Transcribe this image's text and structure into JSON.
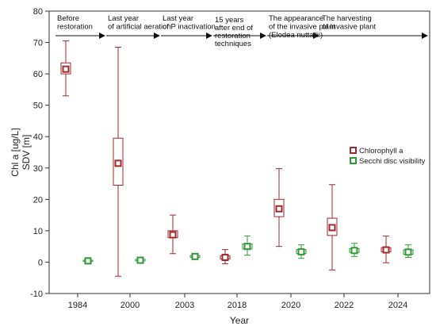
{
  "chart_data": {
    "type": "box",
    "x_title": "Year",
    "y_title_lines": [
      "Chl a [ug/L]",
      "SDV [m]"
    ],
    "categories": [
      "1984",
      "2000",
      "2003",
      "2018",
      "2020",
      "2022",
      "2024"
    ],
    "y_ticks": [
      -10,
      0,
      10,
      20,
      30,
      40,
      50,
      60,
      70,
      80
    ],
    "ylim": [
      -10,
      80
    ],
    "grid": false,
    "legend_placement": "right",
    "colors": {
      "chlorophyll": "#a3282b",
      "secchi": "#2f9a33",
      "arrow": "#111111",
      "axis": "#333333"
    },
    "series": [
      {
        "name": "Chlorophyll a",
        "key": "chlorophyll",
        "boxes": [
          {
            "category": "1984",
            "mean": 61.5,
            "box_low": 60.0,
            "box_high": 63.5,
            "whisker_low": 53.0,
            "whisker_high": 70.5
          },
          {
            "category": "2000",
            "mean": 31.5,
            "box_low": 24.5,
            "box_high": 39.5,
            "whisker_low": -4.5,
            "whisker_high": 68.5
          },
          {
            "category": "2003",
            "mean": 8.7,
            "box_low": 7.8,
            "box_high": 10.0,
            "whisker_low": 2.7,
            "whisker_high": 15.0
          },
          {
            "category": "2018",
            "mean": 1.5,
            "box_low": 1.0,
            "box_high": 2.0,
            "whisker_low": -0.5,
            "whisker_high": 4.0
          },
          {
            "category": "2020",
            "mean": 17.0,
            "box_low": 14.5,
            "box_high": 20.0,
            "whisker_low": 5.0,
            "whisker_high": 29.8
          },
          {
            "category": "2022",
            "mean": 11.0,
            "box_low": 8.5,
            "box_high": 14.0,
            "whisker_low": -2.5,
            "whisker_high": 24.7
          },
          {
            "category": "2024",
            "mean": 3.9,
            "box_low": 3.3,
            "box_high": 4.6,
            "whisker_low": -0.2,
            "whisker_high": 8.3
          }
        ]
      },
      {
        "name": "Secchi disc visibility",
        "key": "secchi",
        "boxes": [
          {
            "category": "1984",
            "mean": 0.4,
            "box_low": 0.2,
            "box_high": 0.6,
            "whisker_low": 0.1,
            "whisker_high": 0.8
          },
          {
            "category": "2000",
            "mean": 0.6,
            "box_low": 0.4,
            "box_high": 0.9,
            "whisker_low": 0.2,
            "whisker_high": 1.2
          },
          {
            "category": "2003",
            "mean": 1.8,
            "box_low": 1.5,
            "box_high": 2.1,
            "whisker_low": 1.2,
            "whisker_high": 2.4
          },
          {
            "category": "2018",
            "mean": 5.0,
            "box_low": 4.2,
            "box_high": 5.8,
            "whisker_low": 2.2,
            "whisker_high": 8.3
          },
          {
            "category": "2020",
            "mean": 3.3,
            "box_low": 2.7,
            "box_high": 4.0,
            "whisker_low": 1.2,
            "whisker_high": 5.5
          },
          {
            "category": "2022",
            "mean": 3.7,
            "box_low": 3.1,
            "box_high": 4.3,
            "whisker_low": 1.8,
            "whisker_high": 6.0
          },
          {
            "category": "2024",
            "mean": 3.2,
            "box_low": 2.5,
            "box_high": 3.9,
            "whisker_low": 1.5,
            "whisker_high": 5.5
          }
        ]
      }
    ],
    "annotations": [
      {
        "lines": [
          "Before",
          "restoration"
        ],
        "start": "1984",
        "end": "2000"
      },
      {
        "lines": [
          "Last year",
          "of artificial aeration"
        ],
        "start": "2000",
        "end": "2003"
      },
      {
        "lines": [
          "Last year",
          "of P inactivation"
        ],
        "start": "2003",
        "end": "2018"
      },
      {
        "lines": [
          "15 years",
          "after end of",
          "restoration",
          "techniques"
        ],
        "start": "2018",
        "end": "2020"
      },
      {
        "lines": [
          "The appearance",
          "of the invasive plant",
          "(Elodea nuttallii)"
        ],
        "start": "2020",
        "end": "2022"
      },
      {
        "lines": [
          "The harvesting",
          "of invasive plant"
        ],
        "start": "2022",
        "end": "end"
      }
    ]
  }
}
